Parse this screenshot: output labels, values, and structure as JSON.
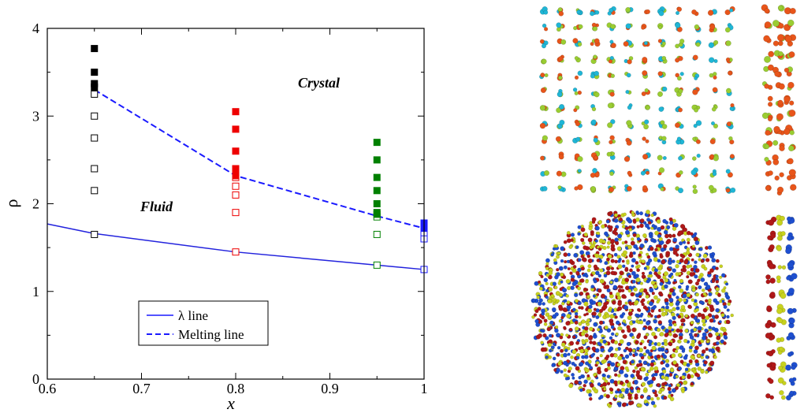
{
  "chart_data": {
    "type": "scatter",
    "xlabel": "x",
    "ylabel": "ρ",
    "xlim": [
      0.6,
      1.0
    ],
    "ylim": [
      0,
      4
    ],
    "xticks": [
      "0.6",
      "0.7",
      "0.8",
      "0.9",
      "1"
    ],
    "yticks": [
      "0",
      "1",
      "2",
      "3",
      "4"
    ],
    "grid": false,
    "annotations": [
      {
        "text": "Crystal",
        "x": 0.874,
        "y": 3.38
      },
      {
        "text": "Fluid",
        "x": 0.703,
        "y": 1.95
      }
    ],
    "legend": {
      "placement": "bottom-center",
      "entries": [
        {
          "label": "λ line",
          "style": "solid",
          "color": "#1a1aff"
        },
        {
          "label": "Melting line",
          "style": "dashed",
          "color": "#1a1aff"
        }
      ]
    },
    "lines": [
      {
        "name": "λ line",
        "style": "solid",
        "color": "#2222dd",
        "x": [
          0.6,
          0.65,
          0.8,
          0.95,
          1.0
        ],
        "y": [
          1.77,
          1.66,
          1.45,
          1.3,
          1.25
        ]
      },
      {
        "name": "Melting line",
        "style": "dashed",
        "color": "#1a1aff",
        "x": [
          0.65,
          0.8,
          0.95,
          1.0
        ],
        "y": [
          3.3,
          2.32,
          1.86,
          1.72
        ]
      }
    ],
    "point_groups": [
      {
        "x": 0.65,
        "color": "#000000",
        "filled": [
          3.33,
          3.37,
          3.5,
          3.77
        ],
        "open": [
          1.65,
          2.15,
          2.4,
          2.75,
          3.0,
          3.25
        ]
      },
      {
        "x": 0.8,
        "color": "#ee0000",
        "filled": [
          2.32,
          2.35,
          2.38,
          2.4,
          2.6,
          2.85,
          3.05
        ],
        "open": [
          1.45,
          1.9,
          2.1,
          2.2,
          2.3
        ]
      },
      {
        "x": 0.95,
        "color": "#008000",
        "filled": [
          1.88,
          1.9,
          2.0,
          2.15,
          2.3,
          2.5,
          2.7
        ],
        "open": [
          1.3,
          1.65,
          1.85
        ]
      },
      {
        "x": 1.0,
        "color": "#1a1aff",
        "filled": [
          1.72,
          1.75,
          1.78
        ],
        "open": [
          1.25,
          1.6,
          1.67
        ]
      }
    ]
  },
  "snapshots": {
    "top_colors": [
      "#9acd32",
      "#e8551a",
      "#1fb6d6"
    ],
    "bottom_colors": [
      "#b01818",
      "#1e4fd0",
      "#c8d21e"
    ]
  }
}
